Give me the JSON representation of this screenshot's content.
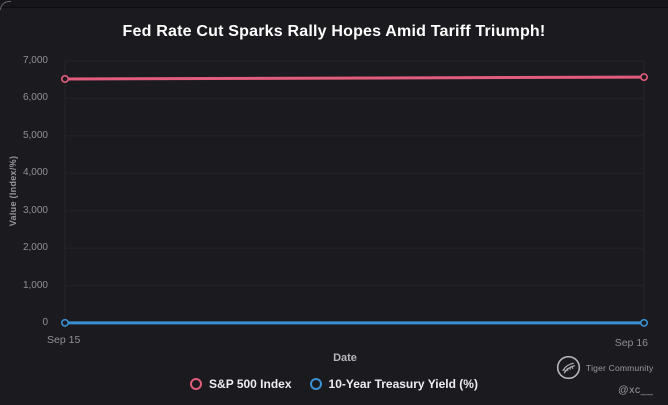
{
  "window": {
    "top_strip": true
  },
  "chart_data": {
    "type": "line",
    "title": "Fed Rate Cut Sparks Rally Hopes Amid Tariff Triumph!",
    "x": [
      "Sep 15",
      "Sep 16"
    ],
    "series": [
      {
        "name": "S&P 500 Index",
        "values": [
          6520,
          6570
        ],
        "color": "#e25c7d"
      },
      {
        "name": "10-Year Treasury Yield (%)",
        "values": [
          4.0,
          4.0
        ],
        "color": "#3a8fd0"
      }
    ],
    "xlabel": "Date",
    "ylabel": "Value (Index/%)",
    "ylim": [
      0,
      7000
    ],
    "yticks": [
      0,
      1000,
      2000,
      3000,
      4000,
      5000,
      6000,
      7000
    ],
    "ytick_labels": [
      "0",
      "1,000",
      "2,000",
      "3,000",
      "4,000",
      "5,000",
      "6,000",
      "7,000"
    ],
    "grid": true,
    "legend_position": "bottom",
    "marker": "circle-open"
  },
  "watermark": {
    "logo_icon": "tiger-logo-icon",
    "community": "Tiger Community",
    "handle": "@xc__"
  },
  "colors": {
    "background": "#1b1b1f",
    "grid": "#242429",
    "tick_label": "#8f8f95",
    "title": "#ffffff",
    "sp500": "#e25c7d",
    "treasury": "#3a8fd0",
    "watermark": "#9a9aa0"
  }
}
